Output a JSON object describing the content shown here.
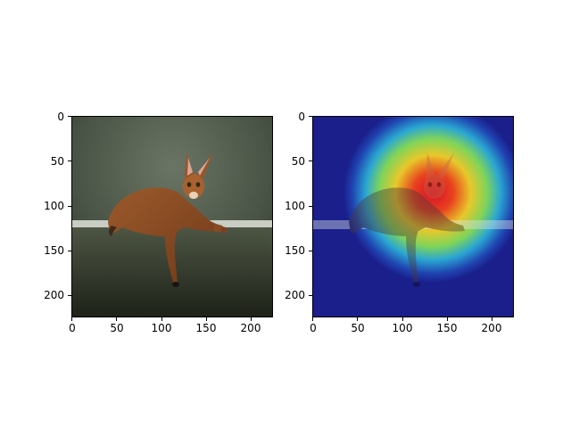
{
  "figure": {
    "panels": [
      {
        "name": "original-image",
        "content": "photo of abyssinian cat lying on a ledge",
        "xticks": [
          "0",
          "50",
          "100",
          "150",
          "200"
        ],
        "yticks": [
          "0",
          "50",
          "100",
          "150",
          "200"
        ]
      },
      {
        "name": "heatmap-overlay",
        "content": "same photo with jet-colormap activation heatmap centered on the cat's head",
        "xticks": [
          "0",
          "50",
          "100",
          "150",
          "200"
        ],
        "yticks": [
          "0",
          "50",
          "100",
          "150",
          "200"
        ]
      }
    ],
    "axis_range": {
      "x": [
        0,
        223
      ],
      "y": [
        0,
        223
      ]
    },
    "colors": {
      "background_wall": "#4a5446",
      "ledge": "#3b4233",
      "cat_fur": "#8a4a22",
      "heatmap_low": "#1a1f8c",
      "heatmap_high": "#e01a1a"
    }
  }
}
